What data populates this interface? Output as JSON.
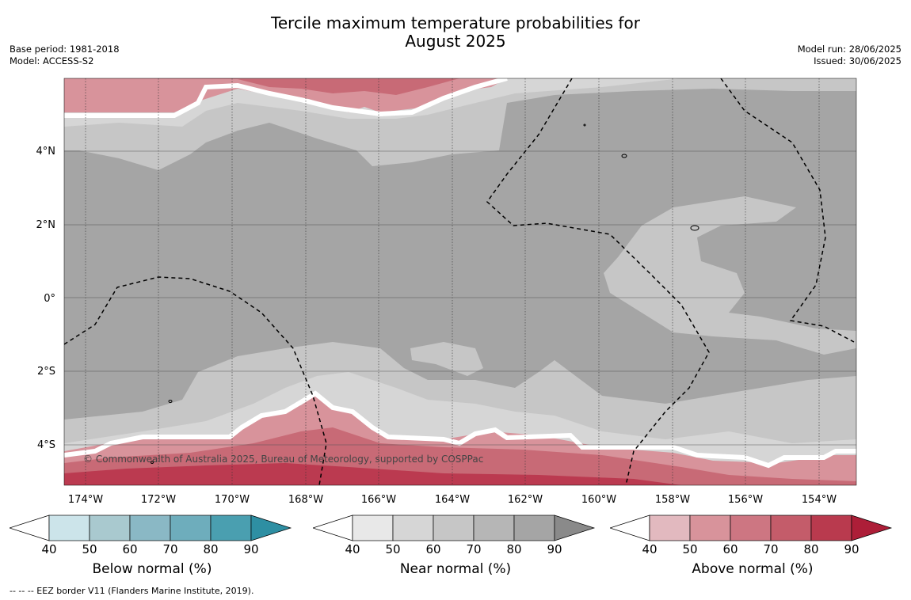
{
  "title_line1": "Tercile maximum temperature probabilities for",
  "title_line2": "August 2025",
  "base_period": "Base period: 1981-2018",
  "model": "Model: ACCESS-S2",
  "model_run": "Model run: 28/06/2025",
  "issued": "Issued: 30/06/2025",
  "copyright": "© Commonwealth of Australia 2025, Bureau of Meteorology, supported by COSPPac",
  "footnote": "--  --  -- EEZ border V11 (Flanders Marine Institute, 2019).",
  "lon_labels": [
    "174°W",
    "172°W",
    "170°W",
    "168°W",
    "166°W",
    "164°W",
    "162°W",
    "160°W",
    "158°W",
    "156°W",
    "154°W"
  ],
  "lat_labels": [
    "4°N",
    "2°N",
    "0°",
    "2°S",
    "4°S"
  ],
  "colorbars": [
    {
      "title": "Below normal (%)",
      "ticks": [
        "40",
        "50",
        "60",
        "70",
        "80",
        "90"
      ],
      "colors": [
        "#ffffff",
        "#cce4ea",
        "#a9c9cf",
        "#8ab8c5",
        "#6eadbc",
        "#4a9fb0",
        "#2e8fa3"
      ]
    },
    {
      "title": "Near normal (%)",
      "ticks": [
        "40",
        "50",
        "60",
        "70",
        "80",
        "90"
      ],
      "colors": [
        "#ffffff",
        "#e8e8e8",
        "#d6d6d6",
        "#c6c6c6",
        "#b6b6b6",
        "#a5a5a5",
        "#8a8a8a"
      ]
    },
    {
      "title": "Above normal (%)",
      "ticks": [
        "40",
        "50",
        "60",
        "70",
        "80",
        "90"
      ],
      "colors": [
        "#ffffff",
        "#e2b9bf",
        "#d8939b",
        "#cd7682",
        "#c45c6a",
        "#b93a4e",
        "#ad1e38"
      ]
    }
  ]
}
